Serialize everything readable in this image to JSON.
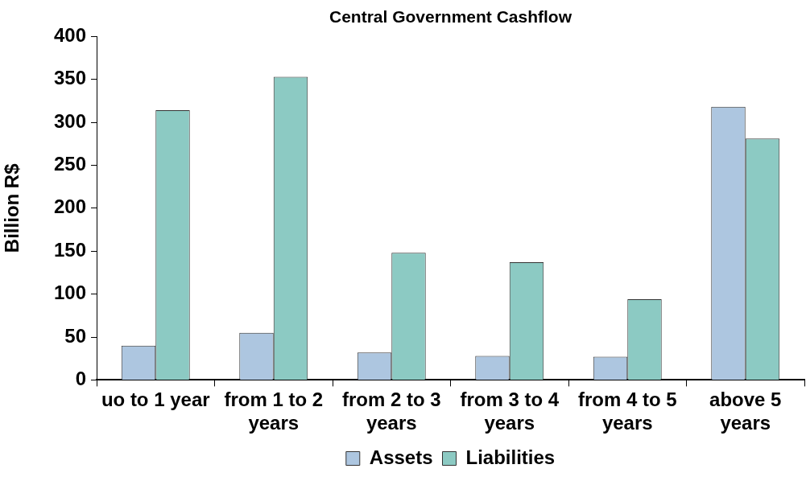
{
  "chart_data": {
    "type": "bar",
    "title": "Central Government Cashflow",
    "ylabel": "Billion R$",
    "categories": [
      "uo to 1 year",
      "from 1 to 2 years",
      "from 2 to 3 years",
      "from 3 to 4 years",
      "from 4 to 5 years",
      "above 5 years"
    ],
    "series": [
      {
        "name": "Assets",
        "color": "#adc6e0",
        "values": [
          40,
          55,
          32,
          28,
          27,
          318
        ]
      },
      {
        "name": "Liabilities",
        "color": "#8ccac3",
        "values": [
          314,
          353,
          148,
          137,
          94,
          281
        ]
      }
    ],
    "ylim": [
      0,
      400
    ],
    "yticks": [
      0,
      50,
      100,
      150,
      200,
      250,
      300,
      350,
      400
    ],
    "grid": false,
    "legend": "bottom"
  }
}
